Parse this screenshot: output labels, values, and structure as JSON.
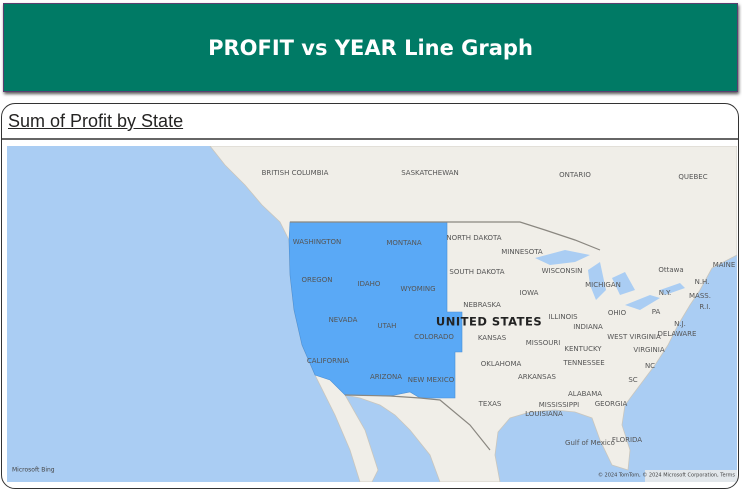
{
  "header": {
    "title": "PROFIT vs YEAR Line Graph"
  },
  "visual": {
    "title": "Sum of Profit by State",
    "map": {
      "labels": [
        "BRITISH COLUMBIA",
        "SASKATCHEWAN",
        "ONTARIO",
        "QUEBEC",
        "WASHINGTON",
        "MONTANA",
        "NORTH DAKOTA",
        "MINNESOTA",
        "OREGON",
        "IDAHO",
        "WYOMING",
        "SOUTH DAKOTA",
        "WISCONSIN",
        "MICHIGAN",
        "Ottawa",
        "MAINE",
        "N.H.",
        "MASS.",
        "NEBRASKA",
        "IOWA",
        "N.Y.",
        "R.I.",
        "NEVADA",
        "UTAH",
        "UNITED STATES",
        "ILLINOIS",
        "INDIANA",
        "OHIO",
        "PA",
        "N.J.",
        "COLORADO",
        "KANSAS",
        "MISSOURI",
        "WEST VIRGINIA",
        "DELAWARE",
        "KENTUCKY",
        "VIRGINIA",
        "CALIFORNIA",
        "OKLAHOMA",
        "TENNESSEE",
        "NC",
        "ARIZONA",
        "NEW MEXICO",
        "ARKANSAS",
        "SC",
        "ALABAMA",
        "TEXAS",
        "MISSISSIPPI",
        "GEORGIA",
        "LOUISIANA",
        "FLORIDA",
        "Gulf of Mexico"
      ],
      "logo": "Microsoft Bing",
      "attribution": "© 2024 TomTom, © 2024 Microsoft Corporation, Terms"
    }
  }
}
